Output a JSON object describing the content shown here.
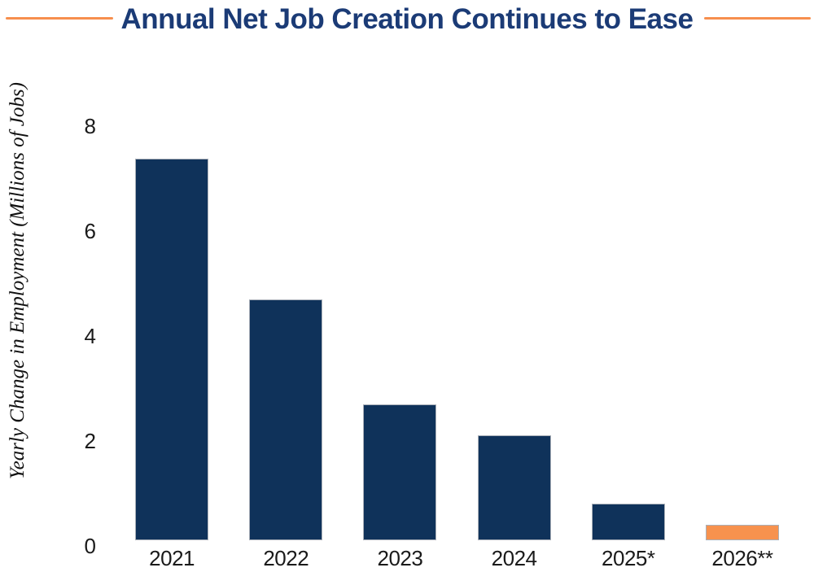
{
  "header": {
    "title": "Annual Net Job Creation Continues to Ease"
  },
  "colors": {
    "bar_navy": "#0F325A",
    "bar_orange": "#F7924E",
    "title_navy": "#1B3B76",
    "rule_orange": "#F78F4E",
    "axis_text": "#1A1A1A",
    "bar_border": "#AAB0B8"
  },
  "chart_data": {
    "type": "bar",
    "title": "Annual Net Job Creation Continues to Ease",
    "xlabel": "",
    "ylabel": "Yearly Change in Employment (Millions of Jobs)",
    "categories": [
      "2021",
      "2022",
      "2023",
      "2024",
      "2025*",
      "2026**"
    ],
    "values": [
      7.3,
      4.6,
      2.6,
      2.0,
      0.7,
      0.3
    ],
    "bar_color_keys": [
      "bar_navy",
      "bar_navy",
      "bar_navy",
      "bar_navy",
      "bar_navy",
      "bar_orange"
    ],
    "yticks": [
      0,
      2,
      4,
      6,
      8
    ],
    "ylim": [
      0,
      8.6
    ],
    "grid": false,
    "legend_position": "none"
  }
}
